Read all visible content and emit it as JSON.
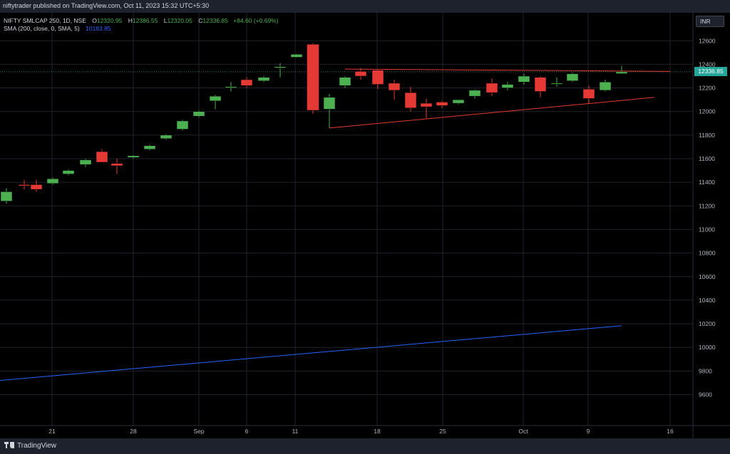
{
  "header": {
    "published": "niftytrader published on TradingView.com, Oct 11, 2023 15:32 UTC+5:30"
  },
  "legend": {
    "symbol": "NIFTY SMLCAP 250, 1D, NSE",
    "o_label": "O",
    "o_value": "12320.95",
    "h_label": "H",
    "h_value": "12386.55",
    "l_label": "L",
    "l_value": "12320.05",
    "c_label": "C",
    "c_value": "12336.85",
    "change": "+84.60 (+0.69%)",
    "sma_label": "SMA (200, close, 0, SMA, 5)",
    "sma_value": "10183.85"
  },
  "currency_button": "INR",
  "last_price_tag": "12336.85",
  "footer": {
    "brand": "TradingView"
  },
  "colors": {
    "up": "#4caf50",
    "down": "#e53935",
    "sma": "#2962ff",
    "trendline": "#e53935",
    "grid": "#1f2229",
    "price_tag": "#26a69a"
  },
  "chart_data": {
    "type": "candlestick",
    "symbol": "NIFTY SMLCAP 250",
    "interval": "1D",
    "y_axis_ticks": [
      9600,
      9800,
      10000,
      10200,
      10400,
      10600,
      10800,
      11000,
      11200,
      11400,
      11600,
      11800,
      12000,
      12200,
      12400,
      12600
    ],
    "ylim": [
      9400,
      12800
    ],
    "x_axis_labels": [
      "21",
      "28",
      "Sep",
      "6",
      "11",
      "18",
      "25",
      "Oct",
      "9",
      "16"
    ],
    "candles": [
      {
        "date": "2023-08-17",
        "o": 11240,
        "h": 11350,
        "l": 11220,
        "c": 11320
      },
      {
        "date": "2023-08-18",
        "o": 11380,
        "h": 11420,
        "l": 11340,
        "c": 11370
      },
      {
        "date": "2023-08-21",
        "o": 11380,
        "h": 11420,
        "l": 11320,
        "c": 11340
      },
      {
        "date": "2023-08-22",
        "o": 11390,
        "h": 11440,
        "l": 11380,
        "c": 11430
      },
      {
        "date": "2023-08-23",
        "o": 11470,
        "h": 11510,
        "l": 11460,
        "c": 11500
      },
      {
        "date": "2023-08-24",
        "o": 11550,
        "h": 11600,
        "l": 11530,
        "c": 11590
      },
      {
        "date": "2023-08-25",
        "o": 11660,
        "h": 11680,
        "l": 11570,
        "c": 11570
      },
      {
        "date": "2023-08-28",
        "o": 11560,
        "h": 11600,
        "l": 11470,
        "c": 11540
      },
      {
        "date": "2023-08-29",
        "o": 11610,
        "h": 11630,
        "l": 11600,
        "c": 11625
      },
      {
        "date": "2023-08-30",
        "o": 11680,
        "h": 11720,
        "l": 11670,
        "c": 11710
      },
      {
        "date": "2023-08-31",
        "o": 11770,
        "h": 11810,
        "l": 11760,
        "c": 11800
      },
      {
        "date": "2023-09-01",
        "o": 11850,
        "h": 11930,
        "l": 11840,
        "c": 11920
      },
      {
        "date": "2023-09-04",
        "o": 11960,
        "h": 12010,
        "l": 11950,
        "c": 12000
      },
      {
        "date": "2023-09-05",
        "o": 12090,
        "h": 12140,
        "l": 12020,
        "c": 12130
      },
      {
        "date": "2023-09-06",
        "o": 12200,
        "h": 12250,
        "l": 12170,
        "c": 12210
      },
      {
        "date": "2023-09-07",
        "o": 12270,
        "h": 12290,
        "l": 12200,
        "c": 12220
      },
      {
        "date": "2023-09-08",
        "o": 12260,
        "h": 12300,
        "l": 12250,
        "c": 12290
      },
      {
        "date": "2023-09-11",
        "o": 12370,
        "h": 12410,
        "l": 12290,
        "c": 12380
      },
      {
        "date": "2023-09-12",
        "o": 12460,
        "h": 12490,
        "l": 12460,
        "c": 12485
      },
      {
        "date": "2023-09-13",
        "o": 12570,
        "h": 12580,
        "l": 11980,
        "c": 12010
      },
      {
        "date": "2023-09-14",
        "o": 12020,
        "h": 12150,
        "l": 11860,
        "c": 12120
      },
      {
        "date": "2023-09-15",
        "o": 12220,
        "h": 12300,
        "l": 12200,
        "c": 12290
      },
      {
        "date": "2023-09-18",
        "o": 12340,
        "h": 12370,
        "l": 12270,
        "c": 12300
      },
      {
        "date": "2023-09-20",
        "o": 12350,
        "h": 12360,
        "l": 12190,
        "c": 12230
      },
      {
        "date": "2023-09-21",
        "o": 12240,
        "h": 12270,
        "l": 12100,
        "c": 12180
      },
      {
        "date": "2023-09-22",
        "o": 12160,
        "h": 12210,
        "l": 12000,
        "c": 12030
      },
      {
        "date": "2023-09-25",
        "o": 12070,
        "h": 12110,
        "l": 11940,
        "c": 12040
      },
      {
        "date": "2023-09-26",
        "o": 12080,
        "h": 12090,
        "l": 12030,
        "c": 12050
      },
      {
        "date": "2023-09-27",
        "o": 12070,
        "h": 12100,
        "l": 12060,
        "c": 12100
      },
      {
        "date": "2023-09-28",
        "o": 12130,
        "h": 12190,
        "l": 12110,
        "c": 12180
      },
      {
        "date": "2023-09-29",
        "o": 12240,
        "h": 12280,
        "l": 12130,
        "c": 12160
      },
      {
        "date": "2023-10-03",
        "o": 12200,
        "h": 12250,
        "l": 12180,
        "c": 12230
      },
      {
        "date": "2023-10-04",
        "o": 12250,
        "h": 12320,
        "l": 12230,
        "c": 12300
      },
      {
        "date": "2023-10-05",
        "o": 12290,
        "h": 12300,
        "l": 12120,
        "c": 12170
      },
      {
        "date": "2023-10-06",
        "o": 12240,
        "h": 12290,
        "l": 12210,
        "c": 12240
      },
      {
        "date": "2023-10-09",
        "o": 12260,
        "h": 12330,
        "l": 12250,
        "c": 12320
      },
      {
        "date": "2023-10-10",
        "o": 12190,
        "h": 12220,
        "l": 12070,
        "c": 12110
      },
      {
        "date": "2023-10-11",
        "o": 12180,
        "h": 12270,
        "l": 12170,
        "c": 12250
      },
      {
        "date": "2023-10-12",
        "o": 12320.95,
        "h": 12386.55,
        "l": 12320.05,
        "c": 12336.85
      }
    ],
    "sma_200": {
      "start": 9720,
      "end": 10183.85
    },
    "trendlines": [
      {
        "from": 12360,
        "to": 12340,
        "label": ""
      },
      {
        "from": 11860,
        "to": 12120,
        "label": ""
      }
    ],
    "last_price": 12336.85,
    "grid": true
  }
}
